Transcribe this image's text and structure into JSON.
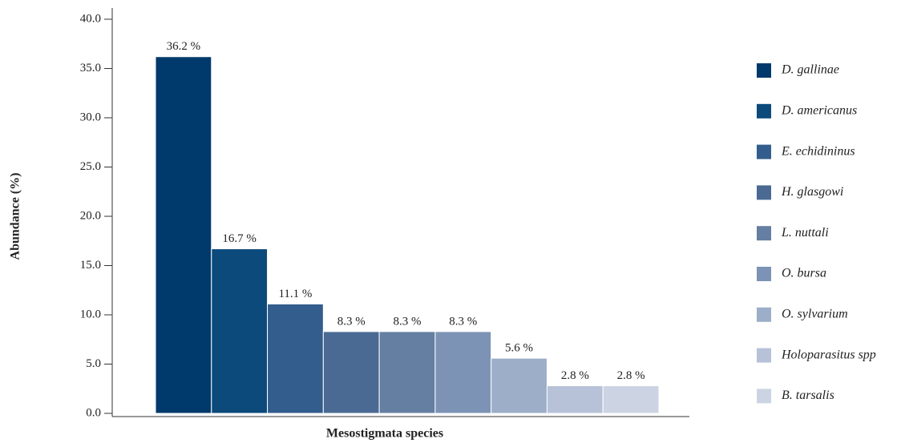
{
  "chart_data": {
    "type": "bar",
    "x_label": "Mesostigmata species",
    "y_label": "Abundance (%)",
    "categories": [
      "D. gallinae",
      "D. americanus",
      "E. echidininus",
      "H. glasgowi",
      "L. nuttali",
      "O. bursa",
      "O. sylvarium",
      "Holoparasitus spp",
      "B. tarsalis"
    ],
    "values": [
      36.2,
      16.7,
      11.1,
      8.3,
      8.3,
      8.3,
      5.6,
      2.8,
      2.8
    ],
    "value_labels": [
      "36.2 %",
      "16.7 %",
      "11.1 %",
      "8.3 %",
      "8.3 %",
      "8.3 %",
      "5.6 %",
      "2.8 %",
      "2.8 %"
    ],
    "colors": [
      "#00396b",
      "#0b4a7b",
      "#335d8c",
      "#4a6a93",
      "#647fa2",
      "#7d93b5",
      "#9caec8",
      "#b7c2d8",
      "#ccd4e3"
    ],
    "ylim": [
      0,
      40
    ],
    "yticks": [
      {
        "value": 0,
        "label": "0.0"
      },
      {
        "value": 5,
        "label": "5.0"
      },
      {
        "value": 10,
        "label": "10.0"
      },
      {
        "value": 15,
        "label": "15.0"
      },
      {
        "value": 20,
        "label": "20.0"
      },
      {
        "value": 25,
        "label": "25.0"
      },
      {
        "value": 30,
        "label": "30.0"
      },
      {
        "value": 35,
        "label": "35.0"
      },
      {
        "value": 40,
        "label": "40.0"
      }
    ],
    "legend": "right"
  }
}
